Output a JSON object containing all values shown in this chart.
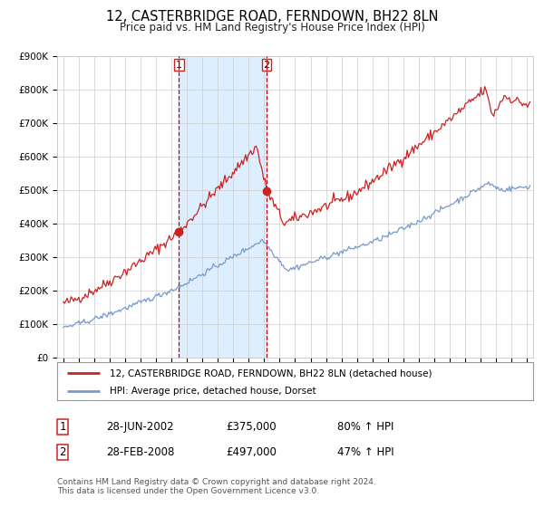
{
  "title": "12, CASTERBRIDGE ROAD, FERNDOWN, BH22 8LN",
  "subtitle": "Price paid vs. HM Land Registry's House Price Index (HPI)",
  "ylim": [
    0,
    900000
  ],
  "yticks": [
    0,
    100000,
    200000,
    300000,
    400000,
    500000,
    600000,
    700000,
    800000,
    900000
  ],
  "ytick_labels": [
    "£0",
    "£100K",
    "£200K",
    "£300K",
    "£400K",
    "£500K",
    "£600K",
    "£700K",
    "£800K",
    "£900K"
  ],
  "xlim_start": 1994.6,
  "xlim_end": 2025.4,
  "xticks": [
    1995,
    1996,
    1997,
    1998,
    1999,
    2000,
    2001,
    2002,
    2003,
    2004,
    2005,
    2006,
    2007,
    2008,
    2009,
    2010,
    2011,
    2012,
    2013,
    2014,
    2015,
    2016,
    2017,
    2018,
    2019,
    2020,
    2021,
    2022,
    2023,
    2024,
    2025
  ],
  "grid_color": "#cccccc",
  "background_color": "#ffffff",
  "sale1_x": 2002.49,
  "sale1_price": 375000,
  "sale2_x": 2008.16,
  "sale2_price": 497000,
  "shading_color": "#ddeeff",
  "vline_color": "#cc0000",
  "legend_line1": "12, CASTERBRIDGE ROAD, FERNDOWN, BH22 8LN (detached house)",
  "legend_line2": "HPI: Average price, detached house, Dorset",
  "red_line_color": "#cc2222",
  "blue_line_color": "#7799cc",
  "footer_text": "Contains HM Land Registry data © Crown copyright and database right 2024.\nThis data is licensed under the Open Government Licence v3.0.",
  "table_row1": [
    "1",
    "28-JUN-2002",
    "£375,000",
    "80% ↑ HPI"
  ],
  "table_row2": [
    "2",
    "28-FEB-2008",
    "£497,000",
    "47% ↑ HPI"
  ]
}
